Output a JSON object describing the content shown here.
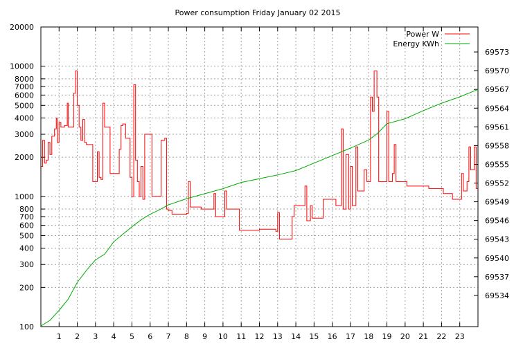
{
  "chart_data": {
    "type": "line",
    "title": "Power consumption Friday January 02 2015",
    "xlabel": "",
    "ylabel": "",
    "x_range": [
      0,
      24
    ],
    "y_range": [
      100,
      20000
    ],
    "y_scale": "log",
    "y2_range": [
      69529,
      69577
    ],
    "grid": true,
    "legend_position": "top-right",
    "x_ticks": [
      "1",
      "2",
      "3",
      "4",
      "5",
      "6",
      "7",
      "8",
      "9",
      "10",
      "11",
      "12",
      "13",
      "14",
      "15",
      "16",
      "17",
      "18",
      "19",
      "20",
      "21",
      "22",
      "23"
    ],
    "y_ticks": [
      {
        "v": 100,
        "label": "100"
      },
      {
        "v": 200,
        "label": "200"
      },
      {
        "v": 300,
        "label": "300"
      },
      {
        "v": 400,
        "label": "400"
      },
      {
        "v": 500,
        "label": "500"
      },
      {
        "v": 600,
        "label": "600"
      },
      {
        "v": 700,
        "label": "700"
      },
      {
        "v": 800,
        "label": "800"
      },
      {
        "v": 1000,
        "label": "1000"
      },
      {
        "v": 2000,
        "label": "2000"
      },
      {
        "v": 3000,
        "label": "3000"
      },
      {
        "v": 4000,
        "label": "4000"
      },
      {
        "v": 5000,
        "label": "5000"
      },
      {
        "v": 6000,
        "label": "6000"
      },
      {
        "v": 7000,
        "label": "7000"
      },
      {
        "v": 8000,
        "label": "8000"
      },
      {
        "v": 10000,
        "label": "10000"
      },
      {
        "v": 20000,
        "label": "20000"
      }
    ],
    "y2_ticks": [
      "69534",
      "69537",
      "69540",
      "69543",
      "69546",
      "69549",
      "69552",
      "69555",
      "69558",
      "69561",
      "69564",
      "69567",
      "69570",
      "69573"
    ],
    "series": [
      {
        "name": "Power W",
        "color": "#ff0000",
        "axis": "y1",
        "points": [
          [
            0,
            1700
          ],
          [
            0.1,
            2700
          ],
          [
            0.2,
            1800
          ],
          [
            0.3,
            1900
          ],
          [
            0.4,
            2600
          ],
          [
            0.5,
            2100
          ],
          [
            0.6,
            2900
          ],
          [
            0.75,
            3300
          ],
          [
            0.85,
            4000
          ],
          [
            0.9,
            2600
          ],
          [
            1.0,
            3700
          ],
          [
            1.1,
            3400
          ],
          [
            1.3,
            3500
          ],
          [
            1.45,
            5200
          ],
          [
            1.5,
            3400
          ],
          [
            1.7,
            3400
          ],
          [
            1.8,
            6200
          ],
          [
            1.9,
            9200
          ],
          [
            2.0,
            5000
          ],
          [
            2.1,
            3400
          ],
          [
            2.2,
            2700
          ],
          [
            2.3,
            3900
          ],
          [
            2.4,
            2600
          ],
          [
            2.5,
            2500
          ],
          [
            2.6,
            2500
          ],
          [
            2.8,
            2500
          ],
          [
            2.85,
            1300
          ],
          [
            3.0,
            1300
          ],
          [
            3.1,
            2200
          ],
          [
            3.2,
            1400
          ],
          [
            3.3,
            1350
          ],
          [
            3.4,
            5200
          ],
          [
            3.5,
            3400
          ],
          [
            3.7,
            3400
          ],
          [
            3.8,
            1500
          ],
          [
            4.0,
            1500
          ],
          [
            4.2,
            1500
          ],
          [
            4.3,
            2300
          ],
          [
            4.4,
            3500
          ],
          [
            4.5,
            3600
          ],
          [
            4.65,
            2800
          ],
          [
            4.8,
            2800
          ],
          [
            4.9,
            1400
          ],
          [
            5.0,
            1000
          ],
          [
            5.1,
            7200
          ],
          [
            5.2,
            1900
          ],
          [
            5.3,
            1300
          ],
          [
            5.4,
            1000
          ],
          [
            5.5,
            1700
          ],
          [
            5.6,
            950
          ],
          [
            5.7,
            3000
          ],
          [
            6.0,
            3000
          ],
          [
            6.1,
            1000
          ],
          [
            6.5,
            1000
          ],
          [
            6.6,
            2700
          ],
          [
            6.8,
            2800
          ],
          [
            6.9,
            800
          ],
          [
            7.0,
            780
          ],
          [
            7.2,
            730
          ],
          [
            8.0,
            740
          ],
          [
            8.1,
            1300
          ],
          [
            8.2,
            830
          ],
          [
            8.7,
            830
          ],
          [
            8.8,
            800
          ],
          [
            9.4,
            800
          ],
          [
            9.5,
            1050
          ],
          [
            9.6,
            700
          ],
          [
            10.0,
            700
          ],
          [
            10.1,
            1100
          ],
          [
            10.2,
            800
          ],
          [
            10.8,
            800
          ],
          [
            10.9,
            550
          ],
          [
            11.5,
            550
          ],
          [
            12.0,
            560
          ],
          [
            12.5,
            560
          ],
          [
            12.9,
            540
          ],
          [
            13.0,
            750
          ],
          [
            13.1,
            470
          ],
          [
            13.7,
            470
          ],
          [
            13.8,
            700
          ],
          [
            13.9,
            850
          ],
          [
            14.3,
            850
          ],
          [
            14.5,
            1200
          ],
          [
            14.6,
            650
          ],
          [
            14.8,
            850
          ],
          [
            14.9,
            680
          ],
          [
            15.4,
            680
          ],
          [
            15.5,
            950
          ],
          [
            16.2,
            850
          ],
          [
            16.4,
            850
          ],
          [
            16.5,
            3300
          ],
          [
            16.6,
            800
          ],
          [
            16.75,
            2100
          ],
          [
            16.9,
            800
          ],
          [
            17.0,
            1700
          ],
          [
            17.1,
            850
          ],
          [
            17.3,
            2400
          ],
          [
            17.4,
            1100
          ],
          [
            17.7,
            1100
          ],
          [
            17.75,
            1600
          ],
          [
            17.9,
            1300
          ],
          [
            18.0,
            1300
          ],
          [
            18.1,
            5800
          ],
          [
            18.2,
            4500
          ],
          [
            18.3,
            9200
          ],
          [
            18.45,
            5800
          ],
          [
            18.55,
            1300
          ],
          [
            18.9,
            1300
          ],
          [
            19.0,
            4500
          ],
          [
            19.1,
            1300
          ],
          [
            19.3,
            1500
          ],
          [
            19.4,
            2500
          ],
          [
            19.5,
            1300
          ],
          [
            20.0,
            1300
          ],
          [
            20.1,
            1200
          ],
          [
            21.2,
            1200
          ],
          [
            21.3,
            1150
          ],
          [
            22.0,
            1150
          ],
          [
            22.1,
            1050
          ],
          [
            22.5,
            1050
          ],
          [
            22.6,
            950
          ],
          [
            23.0,
            950
          ],
          [
            23.1,
            1500
          ],
          [
            23.2,
            1100
          ],
          [
            23.4,
            1300
          ],
          [
            23.5,
            2400
          ],
          [
            23.6,
            1600
          ],
          [
            23.8,
            2400
          ],
          [
            23.9,
            1150
          ],
          [
            24.0,
            1150
          ]
        ]
      },
      {
        "name": "Energy KWh",
        "color": "#00aa00",
        "axis": "y2",
        "points": [
          [
            0,
            69529.1
          ],
          [
            0.5,
            69530.0
          ],
          [
            1.0,
            69531.6
          ],
          [
            1.5,
            69533.4
          ],
          [
            2.0,
            69536.1
          ],
          [
            2.5,
            69538.0
          ],
          [
            3.0,
            69539.7
          ],
          [
            3.5,
            69540.6
          ],
          [
            4.0,
            69542.6
          ],
          [
            4.5,
            69543.8
          ],
          [
            5.0,
            69545.0
          ],
          [
            5.5,
            69546.1
          ],
          [
            6.0,
            69547.0
          ],
          [
            6.5,
            69547.7
          ],
          [
            7.0,
            69548.5
          ],
          [
            8.0,
            69549.5
          ],
          [
            9.0,
            69550.3
          ],
          [
            10.0,
            69551.1
          ],
          [
            11.0,
            69552.1
          ],
          [
            12.0,
            69552.7
          ],
          [
            13.0,
            69553.3
          ],
          [
            14.0,
            69554.0
          ],
          [
            15.0,
            69555.2
          ],
          [
            16.0,
            69556.4
          ],
          [
            17.0,
            69557.6
          ],
          [
            18.0,
            69558.9
          ],
          [
            18.5,
            69560.0
          ],
          [
            19.0,
            69561.5
          ],
          [
            20.0,
            69562.3
          ],
          [
            21.0,
            69563.6
          ],
          [
            22.0,
            69564.8
          ],
          [
            23.0,
            69565.8
          ],
          [
            24.0,
            69567.0
          ]
        ]
      }
    ]
  }
}
